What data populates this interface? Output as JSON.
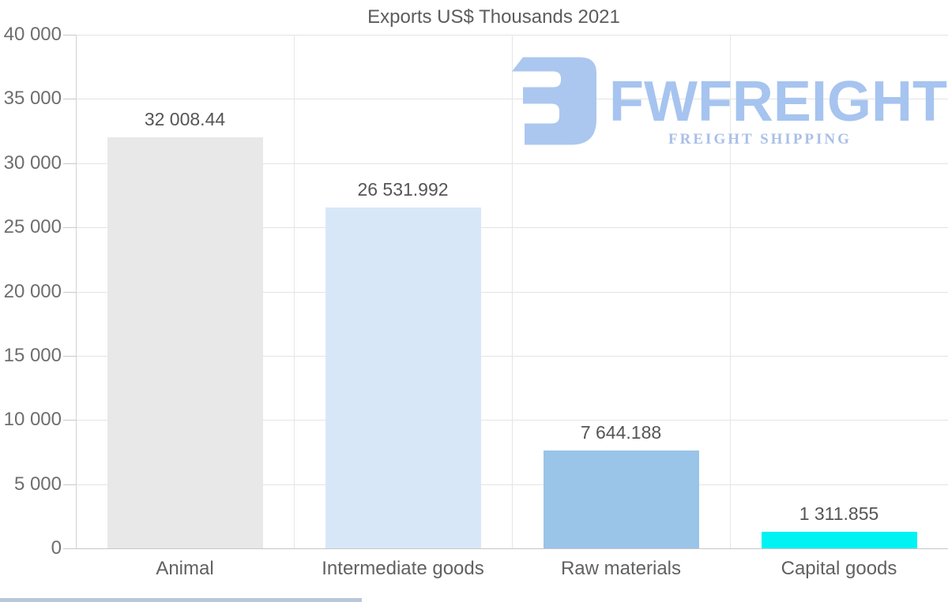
{
  "title": "Exports US$ Thousands 2021",
  "logo": {
    "name": "FWFREIGHT",
    "tagline": "FREIGHT SHIPPING",
    "mark_color": "#abc7ef",
    "name_color": "#a6c4ef",
    "tagline_color": "#a9bfe7"
  },
  "chart_data": {
    "type": "bar",
    "title": "Exports US$ Thousands 2021",
    "categories": [
      "Animal",
      "Intermediate goods",
      "Raw materials",
      "Capital goods"
    ],
    "values": [
      32008.44,
      26531.992,
      7644.188,
      1311.855
    ],
    "value_labels": [
      "32 008.44",
      "26 531.992",
      "7 644.188",
      "1 311.855"
    ],
    "bar_colors": [
      "#e8e8e8",
      "#d8e7f8",
      "#9ac4e8",
      "#00f2f2"
    ],
    "xlabel": "",
    "ylabel": "",
    "ylim": [
      0,
      40000
    ],
    "ytick_step": 5000,
    "ytick_labels": [
      "0",
      "5 000",
      "10 000",
      "15 000",
      "20 000",
      "25 000",
      "30 000",
      "35 000",
      "40 000"
    ],
    "grid": true,
    "legend": "none"
  }
}
